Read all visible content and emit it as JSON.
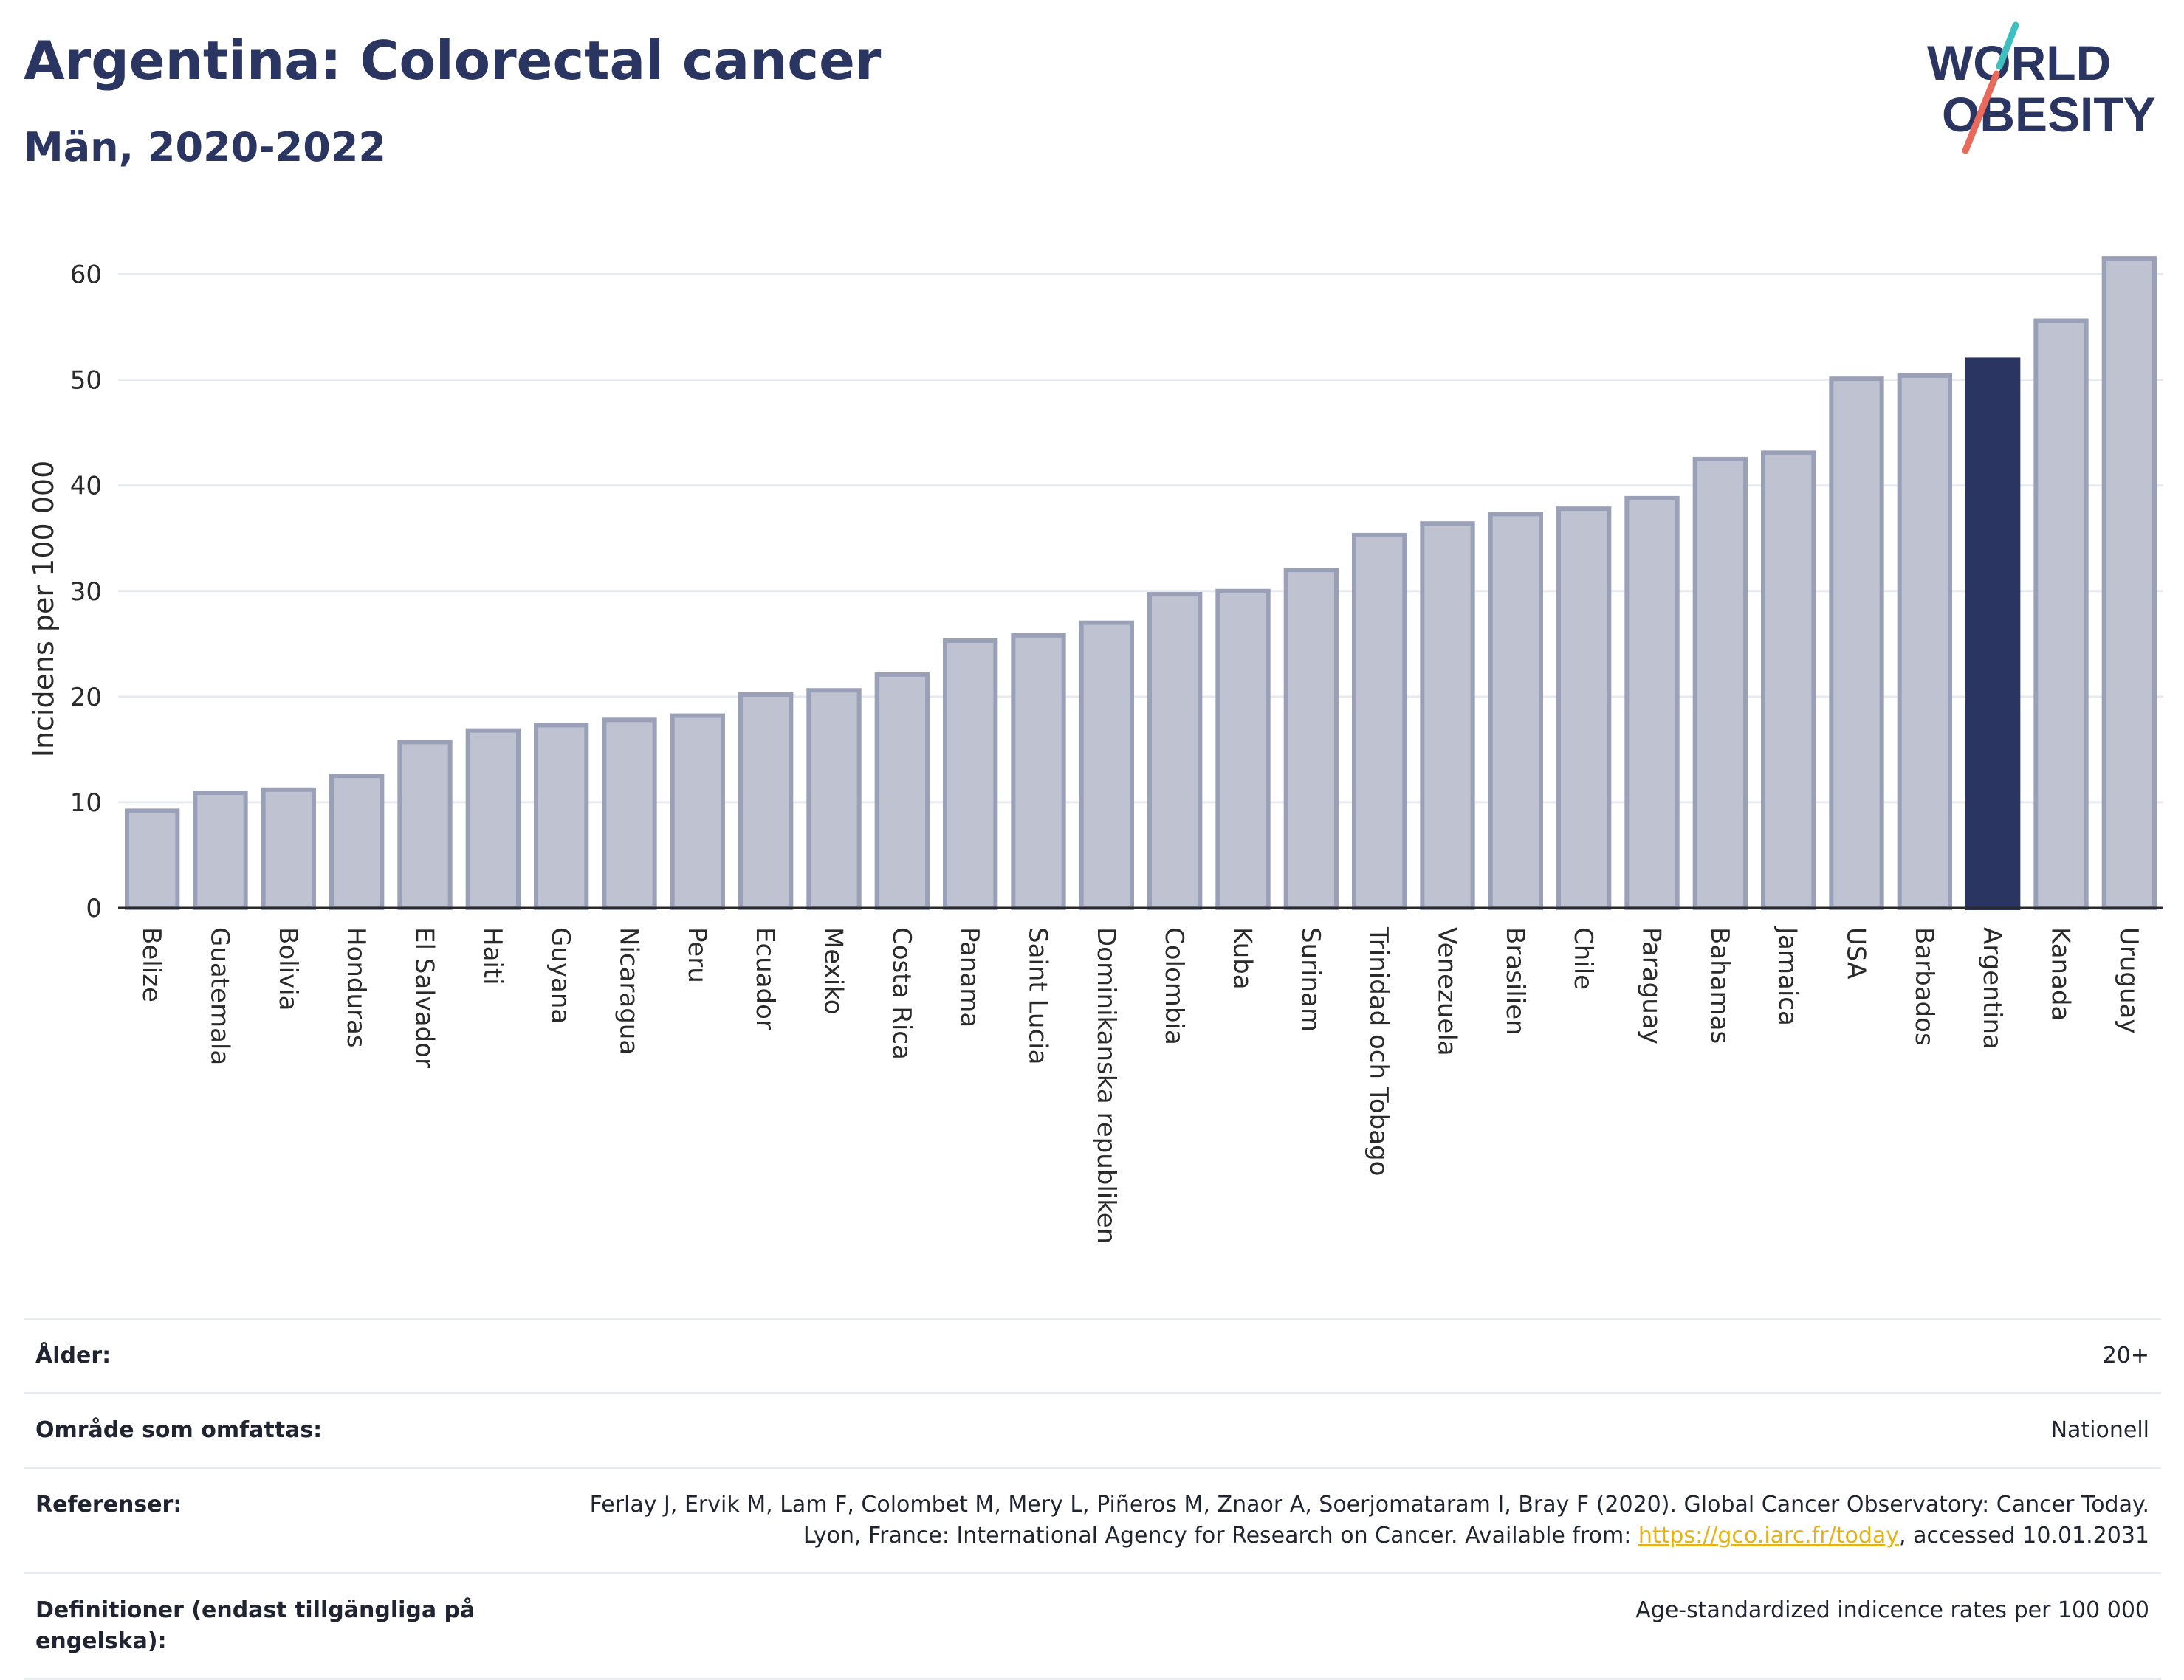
{
  "header": {
    "title": "Argentina: Colorectal cancer",
    "subtitle": "Män, 2020-2022"
  },
  "logo": {
    "line1": "WORLD",
    "line2": "OBESITY",
    "colors": {
      "text": "#2b3561",
      "slash_top": "#3fbfbf",
      "slash_bottom": "#e86a5a"
    }
  },
  "colors": {
    "bar_fill": "#bfc2d0",
    "bar_stroke": "#9aa0b8",
    "highlight_fill": "#2b3561",
    "grid": "#e6ebf2",
    "axis": "#2a2a2a"
  },
  "chart_data": {
    "type": "bar",
    "title": "Argentina: Colorectal cancer",
    "subtitle": "Män, 2020-2022",
    "xlabel": "",
    "ylabel": "Incidens per 100 000",
    "ylim": [
      0,
      65
    ],
    "yticks": [
      0,
      10,
      20,
      30,
      40,
      50,
      60
    ],
    "grid": true,
    "highlight": "Argentina",
    "categories": [
      "Belize",
      "Guatemala",
      "Bolivia",
      "Honduras",
      "El Salvador",
      "Haiti",
      "Guyana",
      "Nicaragua",
      "Peru",
      "Ecuador",
      "Mexiko",
      "Costa Rica",
      "Panama",
      "Saint Lucia",
      "Dominikanska republiken",
      "Colombia",
      "Kuba",
      "Surinam",
      "Trinidad och Tobago",
      "Venezuela",
      "Brasilien",
      "Chile",
      "Paraguay",
      "Bahamas",
      "Jamaica",
      "USA",
      "Barbados",
      "Argentina",
      "Kanada",
      "Uruguay"
    ],
    "values": [
      9.2,
      10.9,
      11.2,
      12.5,
      15.7,
      16.8,
      17.3,
      17.8,
      18.2,
      20.2,
      20.6,
      22.1,
      25.3,
      25.8,
      27.0,
      29.7,
      30.0,
      32.0,
      35.3,
      36.4,
      37.3,
      37.8,
      38.8,
      42.5,
      43.1,
      50.1,
      50.4,
      51.9,
      55.6,
      61.5
    ]
  },
  "meta": {
    "rows": [
      {
        "key": "Ålder:",
        "value": "20+"
      },
      {
        "key": "Område som omfattas:",
        "value": "Nationell"
      }
    ],
    "references": {
      "key": "Referenser:",
      "text_1": "Ferlay J, Ervik M, Lam F, Colombet M, Mery L, Piñeros M, Znaor A, Soerjomataram I, Bray F (2020). Global Cancer Observatory: Cancer Today. Lyon, France: International Agency for Research on Cancer. Available from: ",
      "link": "https://gco.iarc.fr/today",
      "text_2": ", accessed 10.01.2031"
    },
    "definitions": {
      "key": "Definitioner (endast tillgängliga på engelska):",
      "value": "Age-standardized indicence rates per 100 000"
    }
  }
}
